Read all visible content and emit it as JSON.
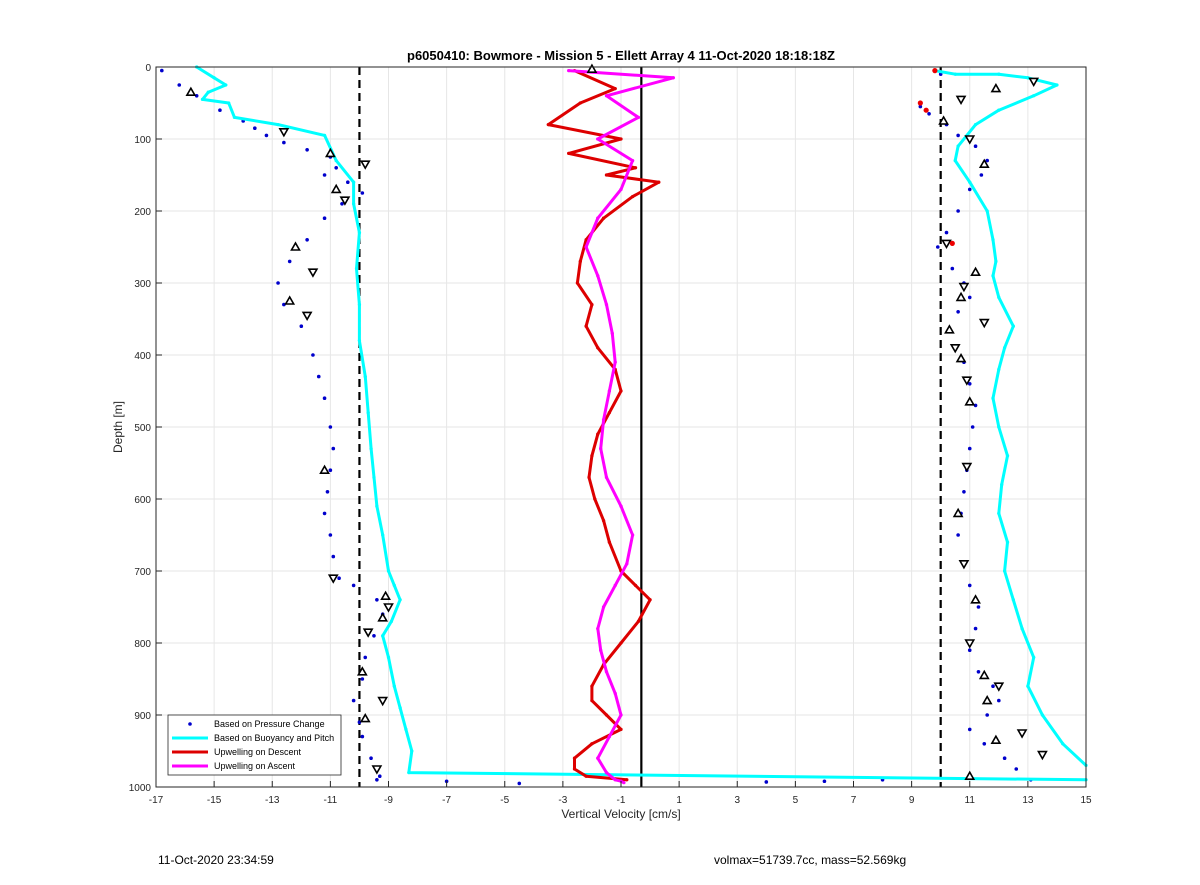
{
  "footer": {
    "timestamp": "11-Oct-2020 23:34:59",
    "mass_info": "volmax=51739.7cc, mass=52.569kg"
  },
  "chart_data": {
    "type": "scatter",
    "title": "p6050410: Bowmore - Mission 5 - Ellett Array 4 11-Oct-2020 18:18:18Z",
    "xlabel": "Vertical Velocity [cm/s]",
    "ylabel": "Depth [m]",
    "xlim": [
      -17,
      15
    ],
    "ylim": [
      0,
      1000
    ],
    "y_reversed": true,
    "grid": true,
    "legend_position": "bottom-left",
    "x_ticks": [
      -17,
      -15,
      -13,
      -11,
      -9,
      -7,
      -5,
      -3,
      -1,
      1,
      3,
      5,
      7,
      9,
      11,
      13,
      15
    ],
    "y_ticks": [
      0,
      100,
      200,
      300,
      400,
      500,
      600,
      700,
      800,
      900,
      1000
    ],
    "reference_lines": [
      {
        "x": -10,
        "style": "dashed",
        "color": "#000000"
      },
      {
        "x": 10,
        "style": "dashed",
        "color": "#000000"
      },
      {
        "x": -0.3,
        "style": "solid",
        "color": "#000000"
      }
    ],
    "series": [
      {
        "name": "Based on Pressure Change",
        "kind": "dots",
        "color": "#0000CC",
        "groups": [
          {
            "x": [
              -16.8,
              -16.2,
              -15.6,
              -14.8,
              -14.0,
              -13.6,
              -13.2,
              -12.6,
              -11.8,
              -11.0,
              -10.8,
              -11.2,
              -10.4,
              -9.9,
              -10.6,
              -11.2,
              -11.8,
              -12.4,
              -12.8,
              -12.6,
              -12.0,
              -11.6,
              -11.4,
              -11.2,
              -11.0,
              -10.9,
              -11.0,
              -11.1,
              -11.2,
              -11.0,
              -10.9,
              -10.7,
              -10.2,
              -9.4,
              -9.2,
              -9.5,
              -9.8,
              -9.9,
              -10.2,
              -10.0,
              -9.9,
              -9.6,
              -9.4
            ],
            "y": [
              5,
              25,
              40,
              60,
              75,
              85,
              95,
              105,
              115,
              125,
              140,
              150,
              160,
              175,
              190,
              210,
              240,
              270,
              300,
              330,
              360,
              400,
              430,
              460,
              500,
              530,
              560,
              590,
              620,
              650,
              680,
              710,
              720,
              740,
              760,
              790,
              820,
              850,
              880,
              910,
              930,
              960,
              990
            ]
          },
          {
            "x": [
              10.0,
              9.3,
              9.6,
              10.2,
              10.6,
              11.2,
              11.6,
              11.4,
              11.0,
              10.6,
              10.2,
              9.9,
              10.4,
              10.8,
              11.0,
              10.6,
              10.3,
              10.5,
              10.8,
              11.0,
              11.2,
              11.1,
              11.0,
              10.9,
              10.8,
              10.7,
              10.6,
              10.8,
              11.0,
              11.3,
              11.2,
              11.0,
              11.3,
              11.8,
              12.0,
              11.6,
              11.0,
              11.5,
              12.2,
              12.6,
              13.1
            ],
            "y": [
              10,
              55,
              65,
              80,
              95,
              110,
              130,
              150,
              170,
              200,
              230,
              250,
              280,
              300,
              320,
              340,
              365,
              390,
              410,
              440,
              470,
              500,
              530,
              560,
              590,
              620,
              650,
              690,
              720,
              750,
              780,
              810,
              840,
              860,
              880,
              900,
              920,
              940,
              960,
              975,
              990
            ]
          },
          {
            "x": [
              -9.3,
              -7.0,
              -4.5,
              4.0,
              6.0,
              8.0
            ],
            "y": [
              985,
              992,
              995,
              993,
              992,
              990
            ]
          }
        ]
      },
      {
        "name": "Based on Buoyancy and Pitch",
        "kind": "line",
        "color": "#00FFFF",
        "groups": [
          {
            "x": [
              -15.6,
              -15.0,
              -14.6,
              -15.2,
              -15.4,
              -14.5,
              -14.3,
              -12.8,
              -11.2,
              -10.8,
              -10.2,
              -10.2,
              -10.0,
              -10.1,
              -10.0,
              -10.0,
              -9.8,
              -9.7,
              -9.6,
              -9.5,
              -9.4,
              -9.2,
              -9.0,
              -8.8,
              -8.6,
              -8.9,
              -9.2,
              -9.0,
              -8.8,
              -8.6,
              -8.4,
              -8.2,
              -8.3,
              15.0
            ],
            "y": [
              0,
              15,
              25,
              35,
              45,
              50,
              70,
              80,
              95,
              130,
              160,
              190,
              230,
              280,
              330,
              380,
              430,
              480,
              530,
              570,
              610,
              650,
              700,
              720,
              740,
              770,
              790,
              820,
              860,
              890,
              920,
              950,
              980,
              990
            ]
          },
          {
            "x": [
              9.8,
              10.5,
              12.0,
              13.0,
              14.0,
              13.2,
              12.0,
              11.2,
              10.6,
              10.5,
              11.0,
              11.6,
              11.8,
              11.9,
              11.8,
              12.0,
              12.5,
              12.2,
              12.0,
              11.8,
              12.0,
              12.3,
              12.1,
              12.0,
              12.3,
              12.2,
              12.5,
              12.8,
              13.2,
              13.0,
              13.5,
              14.2,
              15.0
            ],
            "y": [
              5,
              10,
              10,
              15,
              25,
              40,
              60,
              80,
              110,
              130,
              160,
              200,
              240,
              270,
              290,
              320,
              360,
              390,
              420,
              460,
              500,
              540,
              580,
              620,
              660,
              700,
              740,
              780,
              820,
              860,
              900,
              940,
              970
            ]
          }
        ]
      },
      {
        "name": "Upwelling on Descent",
        "kind": "line",
        "color": "#DD0000",
        "groups": [
          {
            "x": [
              -2.6,
              -1.2,
              -2.4,
              -3.5,
              -1.0,
              -2.8,
              -0.5,
              -1.5,
              0.3,
              -0.6,
              -1.6,
              -2.2,
              -2.4,
              -2.5,
              -2.0,
              -2.2,
              -1.8,
              -1.2,
              -1.0,
              -1.4,
              -1.8,
              -2.0,
              -2.1,
              -1.9,
              -1.6,
              -1.4,
              -1.0,
              -0.5,
              0.0,
              -0.4,
              -1.0,
              -1.6,
              -2.0,
              -2.0,
              -1.5,
              -1.0,
              -2.0,
              -2.6,
              -2.6,
              -2.2,
              -0.8
            ],
            "y": [
              5,
              30,
              50,
              80,
              100,
              120,
              140,
              150,
              160,
              180,
              210,
              240,
              270,
              300,
              330,
              360,
              390,
              420,
              450,
              480,
              510,
              540,
              570,
              600,
              630,
              660,
              700,
              720,
              740,
              770,
              800,
              830,
              860,
              880,
              900,
              920,
              940,
              960,
              975,
              985,
              990
            ]
          }
        ]
      },
      {
        "name": "Upwelling on Ascent",
        "kind": "line",
        "color": "#FF00FF",
        "groups": [
          {
            "x": [
              -2.8,
              0.8,
              -1.5,
              -0.4,
              -1.8,
              -0.6,
              -1.0,
              -1.8,
              -2.2,
              -1.8,
              -1.5,
              -1.3,
              -1.2,
              -1.4,
              -1.6,
              -1.7,
              -1.5,
              -1.0,
              -0.6,
              -0.8,
              -1.2,
              -1.6,
              -1.8,
              -1.7,
              -1.5,
              -1.2,
              -1.0,
              -1.4,
              -1.8,
              -1.5,
              -1.2,
              -1.0,
              -0.9
            ],
            "y": [
              5,
              15,
              40,
              70,
              100,
              130,
              170,
              210,
              250,
              290,
              330,
              370,
              410,
              450,
              490,
              530,
              570,
              610,
              650,
              690,
              720,
              750,
              780,
              810,
              840,
              870,
              900,
              930,
              960,
              980,
              990,
              992,
              994
            ]
          }
        ]
      },
      {
        "name": "",
        "kind": "triangles",
        "color": "#000000",
        "points": {
          "x": [
            -15.8,
            -12.6,
            -11.0,
            -9.8,
            -10.8,
            -10.5,
            -12.2,
            -11.6,
            -12.4,
            -11.8,
            -11.2,
            -10.9,
            -9.1,
            -9.0,
            -9.2,
            -9.7,
            -9.9,
            -9.2,
            -9.8,
            -9.4,
            -2.0,
            13.2,
            11.9,
            10.7,
            10.1,
            11.0,
            11.5,
            10.2,
            11.2,
            10.8,
            10.7,
            11.5,
            10.3,
            10.5,
            10.7,
            10.9,
            11.0,
            10.9,
            10.6,
            10.8,
            11.2,
            11.0,
            11.5,
            12.0,
            11.6,
            12.8,
            11.9,
            13.5,
            11.0
          ],
          "y": [
            35,
            90,
            120,
            135,
            170,
            185,
            250,
            285,
            325,
            345,
            560,
            710,
            735,
            750,
            765,
            785,
            840,
            880,
            905,
            975,
            3,
            20,
            30,
            45,
            75,
            100,
            135,
            245,
            285,
            305,
            320,
            355,
            365,
            390,
            405,
            435,
            465,
            555,
            620,
            690,
            740,
            800,
            845,
            860,
            880,
            925,
            935,
            955,
            985
          ]
        }
      }
    ],
    "red_markers": {
      "x": [
        9.8,
        9.3,
        9.5,
        10.4
      ],
      "y": [
        5,
        50,
        60,
        245
      ]
    }
  }
}
